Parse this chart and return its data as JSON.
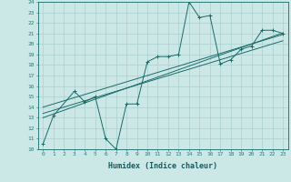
{
  "title": "",
  "xlabel": "Humidex (Indice chaleur)",
  "background_color": "#cce8e6",
  "grid_color": "#aacfcd",
  "line_color": "#1a6b6b",
  "x_data": [
    0,
    1,
    2,
    3,
    4,
    5,
    6,
    7,
    8,
    9,
    10,
    11,
    12,
    13,
    14,
    15,
    16,
    17,
    18,
    19,
    20,
    21,
    22,
    23
  ],
  "y_main": [
    10.5,
    13.2,
    null,
    15.5,
    14.5,
    15.0,
    11.0,
    10.0,
    14.3,
    14.3,
    18.3,
    18.8,
    18.8,
    19.0,
    24.0,
    22.5,
    22.7,
    18.1,
    18.5,
    19.5,
    19.8,
    21.3,
    21.3,
    21.0
  ],
  "y_reg1": [
    13.4,
    13.7,
    14.0,
    14.3,
    14.6,
    14.9,
    15.2,
    15.5,
    15.8,
    16.1,
    16.4,
    16.7,
    17.0,
    17.3,
    17.6,
    17.9,
    18.2,
    18.5,
    18.8,
    19.1,
    19.4,
    19.7,
    20.0,
    20.3
  ],
  "y_reg2": [
    13.0,
    13.35,
    13.7,
    14.05,
    14.4,
    14.75,
    15.1,
    15.45,
    15.8,
    16.15,
    16.5,
    16.85,
    17.2,
    17.55,
    17.9,
    18.25,
    18.6,
    18.95,
    19.3,
    19.65,
    20.0,
    20.35,
    20.7,
    21.05
  ],
  "y_reg3": [
    14.0,
    14.3,
    14.6,
    14.9,
    15.2,
    15.5,
    15.8,
    16.1,
    16.4,
    16.7,
    17.0,
    17.3,
    17.6,
    17.9,
    18.2,
    18.5,
    18.8,
    19.1,
    19.4,
    19.7,
    20.0,
    20.3,
    20.6,
    20.9
  ],
  "ylim": [
    10,
    24
  ],
  "xlim": [
    -0.5,
    23.5
  ],
  "yticks": [
    10,
    11,
    12,
    13,
    14,
    15,
    16,
    17,
    18,
    19,
    20,
    21,
    22,
    23,
    24
  ],
  "xtick_labels": [
    "0",
    "1",
    "2",
    "3",
    "4",
    "5",
    "6",
    "7",
    "8",
    "9",
    "10",
    "11",
    "12",
    "13",
    "14",
    "15",
    "16",
    "17",
    "18",
    "19",
    "20",
    "21",
    "22",
    "23"
  ]
}
